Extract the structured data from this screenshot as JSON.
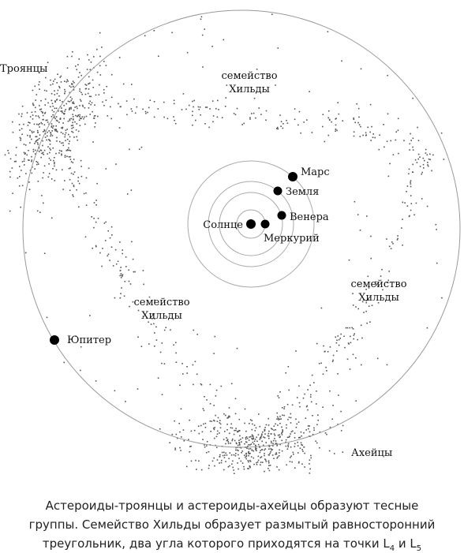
{
  "labels": {
    "trojans": "Троянцы",
    "hilda_top": [
      "семейство",
      "Хильды"
    ],
    "hilda_right": [
      "семейство",
      "Хильды"
    ],
    "hilda_left": [
      "семейство",
      "Хильды"
    ],
    "mars": "Марс",
    "earth": "Земля",
    "venus": "Венера",
    "sun": "Солнце",
    "mercury": "Меркурий",
    "jupiter": "Юпитер",
    "achaeans": "Ахейцы"
  },
  "caption": {
    "lines": [
      "Астероиды-троянцы и астероиды-ахейцы образуют тесные",
      "группы. Семейство Хильды образует размытый равносторонний"
    ],
    "last": {
      "text": "треугольник, два угла которого приходятся на точки L",
      "sub1": "4",
      "mid": " и L",
      "sub2": "5"
    }
  }
}
